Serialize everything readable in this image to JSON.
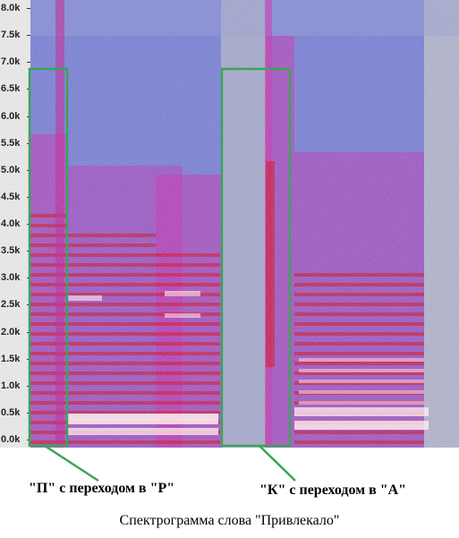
{
  "y_axis": {
    "ticks": [
      "8.0k",
      "7.5k",
      "7.0k",
      "6.5k",
      "6.0k",
      "5.5k",
      "5.0k",
      "4.5k",
      "4.0k",
      "3.5k",
      "3.0k",
      "2.5k",
      "2.0k",
      "1.5k",
      "1.0k",
      "0.5k",
      "0.0k"
    ]
  },
  "annotations": {
    "p_label": "\"П\" с переходом в \"Р\"",
    "k_label": "\"К\" с переходом в \"А\""
  },
  "caption": "Спектрограмма слова \"Привлекало\"",
  "colors": {
    "highlight_box": "#3aa55a",
    "background_low": "#8c8fd6",
    "energy_mid": "#c43fb0",
    "energy_high": "#d61a22",
    "energy_peak": "#fff0f0"
  }
}
